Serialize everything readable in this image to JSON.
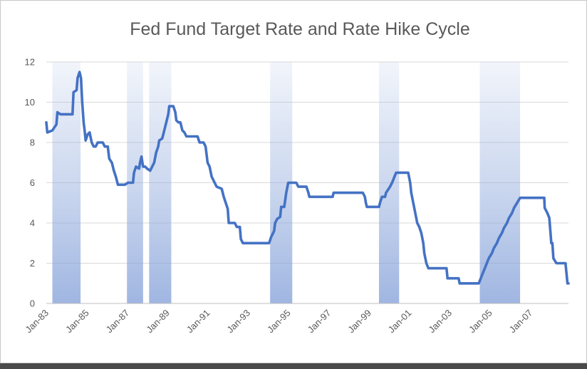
{
  "chart_data": {
    "type": "line",
    "title": "Fed Fund Target Rate and Rate Hike Cycle",
    "xlabel": "",
    "ylabel": "",
    "ylim": [
      0,
      12
    ],
    "xlim": [
      1983.0,
      2008.9
    ],
    "y_ticks": [
      "0",
      "2",
      "4",
      "6",
      "8",
      "10",
      "12"
    ],
    "y_tick_values": [
      0,
      2,
      4,
      6,
      8,
      10,
      12
    ],
    "x_ticks": [
      "Jan-83",
      "Jan-85",
      "Jan-87",
      "Jan-89",
      "Jan-91",
      "Jan-93",
      "Jan-95",
      "Jan-97",
      "Jan-99",
      "Jan-01",
      "Jan-03",
      "Jan-05",
      "Jan-07"
    ],
    "x_tick_values": [
      1983,
      1985,
      1987,
      1989,
      1991,
      1993,
      1995,
      1997,
      1999,
      2001,
      2003,
      2005,
      2007
    ],
    "grid": true,
    "line_color": "#4472c4",
    "band_color": "#8fa9dc",
    "hike_cycles": [
      {
        "start": 1983.3,
        "end": 1984.7
      },
      {
        "start": 1987.0,
        "end": 1987.8
      },
      {
        "start": 1988.1,
        "end": 1989.2
      },
      {
        "start": 1994.1,
        "end": 1995.2
      },
      {
        "start": 1999.5,
        "end": 2000.5
      },
      {
        "start": 2004.5,
        "end": 2006.5
      }
    ],
    "series": [
      {
        "name": "Fed Fund Target Rate",
        "points": [
          [
            1983.0,
            9.0
          ],
          [
            1983.05,
            8.5
          ],
          [
            1983.3,
            8.6
          ],
          [
            1983.5,
            8.9
          ],
          [
            1983.55,
            9.5
          ],
          [
            1983.7,
            9.4
          ],
          [
            1984.3,
            9.4
          ],
          [
            1984.35,
            10.5
          ],
          [
            1984.5,
            10.6
          ],
          [
            1984.55,
            11.2
          ],
          [
            1984.65,
            11.5
          ],
          [
            1984.72,
            11.2
          ],
          [
            1984.78,
            10.0
          ],
          [
            1984.85,
            9.0
          ],
          [
            1984.9,
            8.6
          ],
          [
            1984.95,
            8.1
          ],
          [
            1985.05,
            8.4
          ],
          [
            1985.15,
            8.5
          ],
          [
            1985.25,
            8.0
          ],
          [
            1985.35,
            7.8
          ],
          [
            1985.45,
            7.8
          ],
          [
            1985.55,
            8.0
          ],
          [
            1985.8,
            8.0
          ],
          [
            1985.9,
            7.8
          ],
          [
            1986.05,
            7.8
          ],
          [
            1986.12,
            7.2
          ],
          [
            1986.25,
            7.0
          ],
          [
            1986.35,
            6.6
          ],
          [
            1986.45,
            6.3
          ],
          [
            1986.55,
            5.9
          ],
          [
            1986.9,
            5.9
          ],
          [
            1987.05,
            6.0
          ],
          [
            1987.3,
            6.0
          ],
          [
            1987.35,
            6.5
          ],
          [
            1987.45,
            6.8
          ],
          [
            1987.6,
            6.7
          ],
          [
            1987.65,
            7.0
          ],
          [
            1987.72,
            7.3
          ],
          [
            1987.8,
            6.8
          ],
          [
            1987.9,
            6.8
          ],
          [
            1988.0,
            6.7
          ],
          [
            1988.15,
            6.6
          ],
          [
            1988.25,
            6.8
          ],
          [
            1988.35,
            7.0
          ],
          [
            1988.45,
            7.5
          ],
          [
            1988.55,
            7.8
          ],
          [
            1988.6,
            8.1
          ],
          [
            1988.75,
            8.2
          ],
          [
            1988.85,
            8.6
          ],
          [
            1988.95,
            9.0
          ],
          [
            1989.05,
            9.4
          ],
          [
            1989.1,
            9.8
          ],
          [
            1989.3,
            9.8
          ],
          [
            1989.4,
            9.5
          ],
          [
            1989.45,
            9.1
          ],
          [
            1989.55,
            9.0
          ],
          [
            1989.65,
            9.0
          ],
          [
            1989.75,
            8.6
          ],
          [
            1989.85,
            8.5
          ],
          [
            1989.95,
            8.3
          ],
          [
            1990.5,
            8.3
          ],
          [
            1990.6,
            8.0
          ],
          [
            1990.8,
            8.0
          ],
          [
            1990.9,
            7.8
          ],
          [
            1991.0,
            7.0
          ],
          [
            1991.1,
            6.8
          ],
          [
            1991.2,
            6.3
          ],
          [
            1991.35,
            6.0
          ],
          [
            1991.45,
            5.8
          ],
          [
            1991.7,
            5.7
          ],
          [
            1991.8,
            5.3
          ],
          [
            1991.9,
            5.0
          ],
          [
            1992.0,
            4.7
          ],
          [
            1992.05,
            4.0
          ],
          [
            1992.35,
            4.0
          ],
          [
            1992.45,
            3.8
          ],
          [
            1992.6,
            3.8
          ],
          [
            1992.65,
            3.2
          ],
          [
            1992.75,
            3.0
          ],
          [
            1994.05,
            3.0
          ],
          [
            1994.15,
            3.3
          ],
          [
            1994.3,
            3.6
          ],
          [
            1994.35,
            4.0
          ],
          [
            1994.45,
            4.2
          ],
          [
            1994.6,
            4.3
          ],
          [
            1994.65,
            4.8
          ],
          [
            1994.8,
            4.8
          ],
          [
            1994.9,
            5.5
          ],
          [
            1995.0,
            6.0
          ],
          [
            1995.4,
            6.0
          ],
          [
            1995.5,
            5.8
          ],
          [
            1995.9,
            5.8
          ],
          [
            1996.0,
            5.5
          ],
          [
            1996.05,
            5.3
          ],
          [
            1997.2,
            5.3
          ],
          [
            1997.25,
            5.5
          ],
          [
            1998.7,
            5.5
          ],
          [
            1998.8,
            5.3
          ],
          [
            1998.85,
            5.0
          ],
          [
            1998.9,
            4.8
          ],
          [
            1999.5,
            4.8
          ],
          [
            1999.55,
            5.0
          ],
          [
            1999.65,
            5.3
          ],
          [
            1999.8,
            5.3
          ],
          [
            1999.85,
            5.5
          ],
          [
            2000.05,
            5.8
          ],
          [
            2000.15,
            6.0
          ],
          [
            2000.35,
            6.5
          ],
          [
            2000.95,
            6.5
          ],
          [
            2001.05,
            6.0
          ],
          [
            2001.1,
            5.5
          ],
          [
            2001.2,
            5.0
          ],
          [
            2001.3,
            4.5
          ],
          [
            2001.4,
            4.0
          ],
          [
            2001.5,
            3.8
          ],
          [
            2001.6,
            3.5
          ],
          [
            2001.7,
            3.0
          ],
          [
            2001.75,
            2.5
          ],
          [
            2001.85,
            2.0
          ],
          [
            2001.95,
            1.75
          ],
          [
            2002.85,
            1.75
          ],
          [
            2002.9,
            1.25
          ],
          [
            2003.45,
            1.25
          ],
          [
            2003.5,
            1.0
          ],
          [
            2004.45,
            1.0
          ],
          [
            2004.55,
            1.25
          ],
          [
            2004.65,
            1.5
          ],
          [
            2004.75,
            1.75
          ],
          [
            2004.85,
            2.0
          ],
          [
            2004.95,
            2.25
          ],
          [
            2005.1,
            2.5
          ],
          [
            2005.2,
            2.75
          ],
          [
            2005.35,
            3.0
          ],
          [
            2005.45,
            3.25
          ],
          [
            2005.6,
            3.5
          ],
          [
            2005.7,
            3.75
          ],
          [
            2005.85,
            4.0
          ],
          [
            2005.95,
            4.25
          ],
          [
            2006.1,
            4.5
          ],
          [
            2006.2,
            4.75
          ],
          [
            2006.35,
            5.0
          ],
          [
            2006.5,
            5.25
          ],
          [
            2007.7,
            5.25
          ],
          [
            2007.72,
            4.75
          ],
          [
            2007.85,
            4.5
          ],
          [
            2007.95,
            4.25
          ],
          [
            2008.05,
            3.0
          ],
          [
            2008.1,
            3.0
          ],
          [
            2008.15,
            2.25
          ],
          [
            2008.3,
            2.0
          ],
          [
            2008.75,
            2.0
          ],
          [
            2008.8,
            1.5
          ],
          [
            2008.85,
            1.0
          ],
          [
            2008.9,
            1.0
          ]
        ]
      }
    ]
  }
}
